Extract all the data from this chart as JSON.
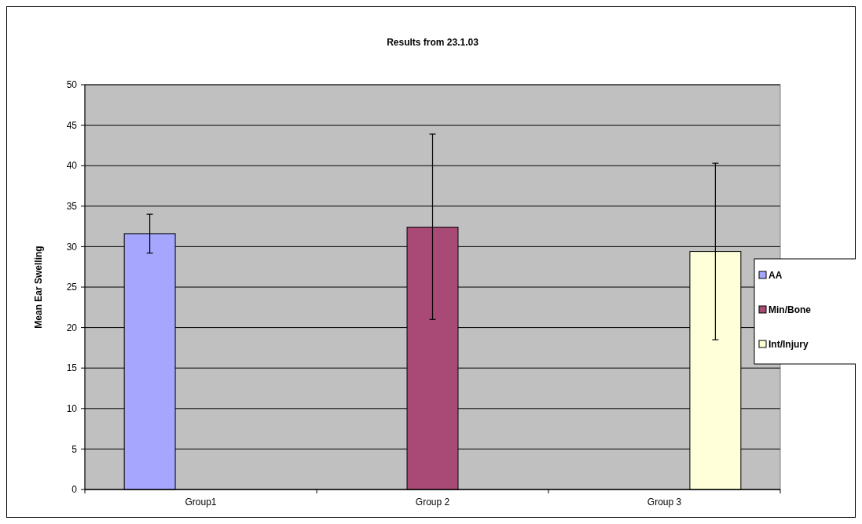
{
  "chart_data": {
    "type": "bar",
    "title": "Results from 23.1.03",
    "ylabel": "Mean Ear Swelling",
    "categories": [
      "Group1",
      "Group 2",
      "Group 3"
    ],
    "series": [
      {
        "name": "AA",
        "color": "#a6a6ff",
        "values": [
          31.6,
          null,
          null
        ],
        "errors": [
          [
            29.2,
            34.0
          ],
          null,
          null
        ]
      },
      {
        "name": "Min/Bone",
        "color": "#a94a76",
        "values": [
          null,
          32.4,
          null
        ],
        "errors": [
          null,
          [
            21.0,
            43.9
          ],
          null
        ]
      },
      {
        "name": "Int/Injury",
        "color": "#ffffd9",
        "values": [
          null,
          null,
          29.4
        ],
        "errors": [
          null,
          null,
          [
            18.5,
            40.3
          ]
        ]
      }
    ],
    "ylim": [
      0,
      50
    ],
    "yticks": [
      0,
      5,
      10,
      15,
      20,
      25,
      30,
      35,
      40,
      45,
      50
    ],
    "grid": "y",
    "legend": "right"
  }
}
